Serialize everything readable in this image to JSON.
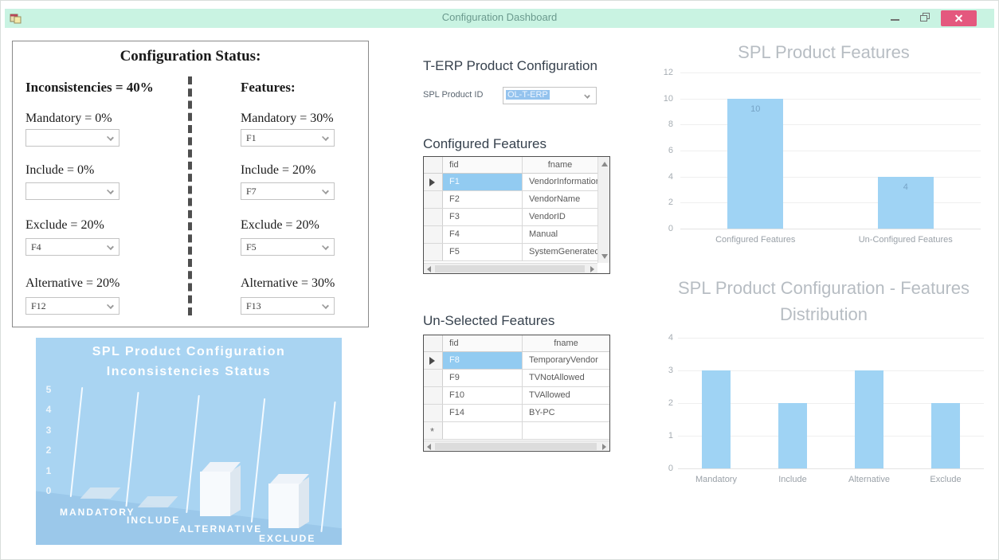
{
  "window": {
    "title": "Configuration Dashboard"
  },
  "status_panel": {
    "title": "Configuration Status:",
    "inconsistencies": {
      "heading": "Inconsistencies = 40%",
      "items": [
        {
          "label": "Mandatory = 0%",
          "value": ""
        },
        {
          "label": "Include = 0%",
          "value": ""
        },
        {
          "label": "Exclude = 20%",
          "value": "F4"
        },
        {
          "label": "Alternative = 20%",
          "value": "F12"
        }
      ]
    },
    "features": {
      "heading": "Features:",
      "items": [
        {
          "label": "Mandatory = 30%",
          "value": "F1"
        },
        {
          "label": "Include = 20%",
          "value": "F7"
        },
        {
          "label": "Exclude = 20%",
          "value": "F5"
        },
        {
          "label": "Alternative = 30%",
          "value": "F13"
        }
      ]
    }
  },
  "erp_section": {
    "title": "T-ERP Product Configuration",
    "product_id_label": "SPL Product ID",
    "product_id_value": "OL-T-ERP",
    "configured": {
      "title": "Configured Features",
      "columns": [
        "fid",
        "fname"
      ],
      "rows": [
        [
          "F1",
          "VendorInformation"
        ],
        [
          "F2",
          "VendorName"
        ],
        [
          "F3",
          "VendorID"
        ],
        [
          "F4",
          "Manual"
        ],
        [
          "F5",
          "SystemGenerated"
        ]
      ],
      "selected_row": 0
    },
    "unselected": {
      "title": "Un-Selected Features",
      "columns": [
        "fid",
        "fname"
      ],
      "rows": [
        [
          "F8",
          "TemporaryVendor"
        ],
        [
          "F9",
          "TVNotAllowed"
        ],
        [
          "F10",
          "TVAllowed"
        ],
        [
          "F14",
          "BY-PC"
        ]
      ],
      "selected_row": 0,
      "new_row_marker": "*"
    }
  },
  "chart_data": [
    {
      "type": "bar",
      "title": "SPL Product Features",
      "categories": [
        "Configured Features",
        "Un-Configured Features"
      ],
      "values": [
        10,
        4
      ],
      "data_labels": [
        "10",
        "4"
      ],
      "show_values": true,
      "yticks": [
        0,
        2,
        4,
        6,
        8,
        10,
        12
      ],
      "ylim": [
        0,
        12
      ],
      "xlabel": "",
      "ylabel": "",
      "grid": true,
      "legend": "none",
      "bar_color": "#9fd3f4"
    },
    {
      "type": "bar",
      "title": "SPL  Product Configuration - Features Distribution",
      "categories": [
        "Mandatory",
        "Include",
        "Alternative",
        "Exclude"
      ],
      "values": [
        3,
        2,
        3,
        2
      ],
      "show_values": false,
      "yticks": [
        0,
        1,
        2,
        3,
        4
      ],
      "ylim": [
        0,
        4
      ],
      "xlabel": "",
      "ylabel": "",
      "grid": true,
      "legend": "none",
      "bar_color": "#9fd3f4"
    },
    {
      "type": "bar",
      "subtype": "3d",
      "title": "SPL Product Configuration Inconsistencies Status",
      "categories": [
        "MANDATORY",
        "INCLUDE",
        "ALTERNATIVE",
        "EXCLUDE"
      ],
      "values": [
        0,
        0,
        1,
        1
      ],
      "yticks": [
        0,
        1,
        2,
        3,
        4,
        5
      ],
      "ylim": [
        0,
        5
      ],
      "xlabel": "",
      "ylabel": "",
      "grid": false,
      "legend": "none",
      "background": "#a9d4f2",
      "bar_color": "#f7fafd"
    }
  ],
  "colors": {
    "titlebar": "#c9f3e2",
    "titlebar_text": "#6b9a8e",
    "close_button": "#e4587e",
    "bar_blue": "#9fd3f4",
    "chart3d_background": "#a9d4f2",
    "grid_selection": "#92cbf1",
    "chart_title_gray": "#b7bdc3"
  }
}
